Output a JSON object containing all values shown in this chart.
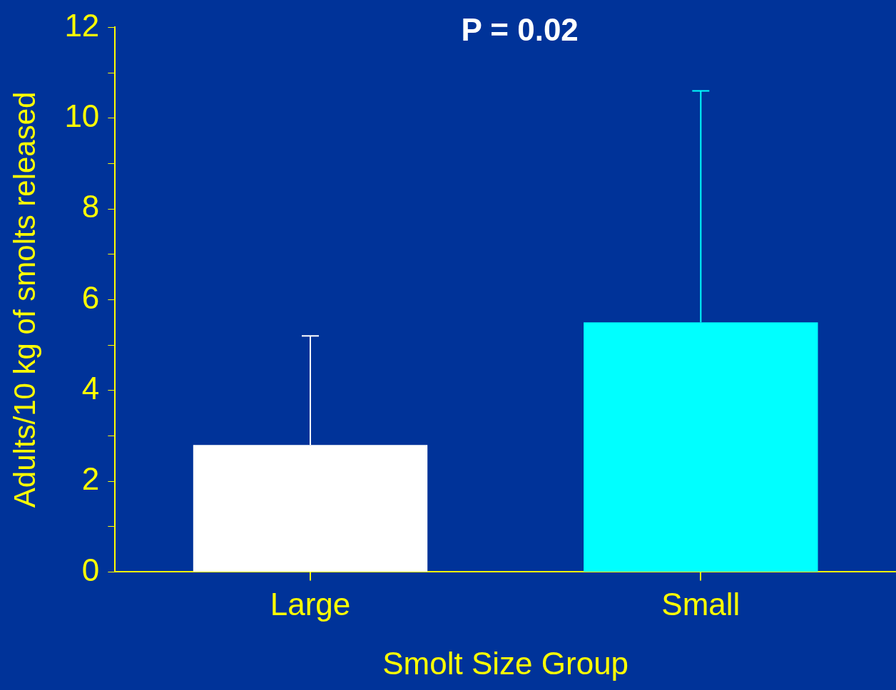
{
  "chart_data": {
    "type": "bar",
    "categories": [
      "Large",
      "Small"
    ],
    "values": [
      2.8,
      5.5
    ],
    "colors": [
      "#ffffff",
      "#00ffff"
    ],
    "errors": [
      [
        2.8,
        5.2
      ],
      [
        5.5,
        10.6
      ]
    ],
    "xlabel": "Smolt Size Group",
    "ylabel": "Adults/10 kg of smolts released",
    "annotations": [
      "P = 0.02"
    ],
    "ylim": [
      0,
      12
    ],
    "yticks": [
      0,
      {
        "value": 1,
        "label": null
      },
      2,
      {
        "value": 3,
        "label": null
      },
      4,
      {
        "value": 5,
        "label": null
      },
      6,
      {
        "value": 7,
        "label": null
      },
      8,
      {
        "value": 9,
        "label": null
      },
      10,
      {
        "value": 11,
        "label": null
      },
      12
    ],
    "grid": false,
    "legend": false
  }
}
